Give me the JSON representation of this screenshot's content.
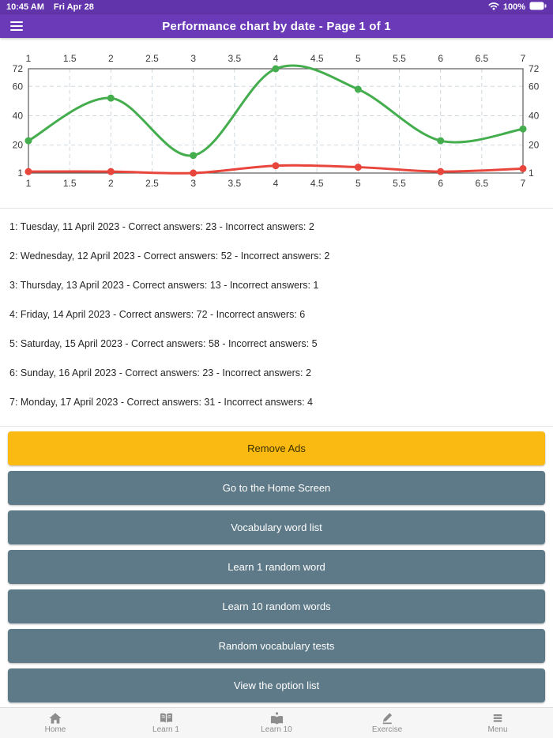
{
  "colors": {
    "status_bar_purple": "#6234ab",
    "header_purple": "#6a3ab9",
    "accent_yellow": "#fbba12",
    "button_slate": "#5e7a88",
    "line_green": "#44ad4d",
    "line_red": "#e8453c",
    "grid_gray": "#cfd9e0",
    "frame_gray": "#5a5a5a"
  },
  "status_bar": {
    "time": "10:45 AM",
    "date": "Fri Apr 28",
    "battery_percent": "100%",
    "icons": [
      "wifi-icon",
      "battery-icon"
    ]
  },
  "header": {
    "title": "Performance chart by date - Page 1 of 1",
    "icon": "hamburger-menu-icon"
  },
  "chart_data": {
    "type": "line",
    "title": "",
    "x": [
      1,
      2,
      3,
      4,
      5,
      6,
      7
    ],
    "series": [
      {
        "name": "Correct answers",
        "color": "#44ad4d",
        "values": [
          23,
          52,
          13,
          72,
          58,
          23,
          31
        ]
      },
      {
        "name": "Incorrect answers",
        "color": "#e8453c",
        "values": [
          2,
          2,
          1,
          6,
          5,
          2,
          4
        ]
      }
    ],
    "x_ticks": [
      1,
      1.5,
      2,
      2.5,
      3,
      3.5,
      4,
      4.5,
      5,
      5.5,
      6,
      6.5,
      7
    ],
    "y_ticks": [
      1,
      20,
      40,
      60,
      72
    ],
    "xlim": [
      1,
      7
    ],
    "ylim": [
      1,
      72
    ],
    "grid": "dashed",
    "smooth": true,
    "legend": "none",
    "x_labels_position": "top and bottom",
    "y_labels_position": "left and right"
  },
  "days": [
    "1: Tuesday, 11 April 2023 - Correct answers: 23 - Incorrect answers: 2",
    "2: Wednesday, 12 April 2023 - Correct answers: 52 - Incorrect answers: 2",
    "3: Thursday, 13 April 2023 - Correct answers: 13 - Incorrect answers: 1",
    "4: Friday, 14 April 2023 - Correct answers: 72 - Incorrect answers: 6",
    "5: Saturday, 15 April 2023 - Correct answers: 58 - Incorrect answers: 5",
    "6: Sunday, 16 April 2023 - Correct answers: 23 - Incorrect answers: 2",
    "7: Monday, 17 April 2023 - Correct answers: 31 - Incorrect answers: 4"
  ],
  "buttons": [
    {
      "label": "Remove Ads",
      "style": "yellow"
    },
    {
      "label": "Go to the Home Screen",
      "style": "slate"
    },
    {
      "label": "Vocabulary word list",
      "style": "slate"
    },
    {
      "label": "Learn 1 random word",
      "style": "slate"
    },
    {
      "label": "Learn 10 random words",
      "style": "slate"
    },
    {
      "label": "Random vocabulary tests",
      "style": "slate"
    },
    {
      "label": "View the option list",
      "style": "slate"
    }
  ],
  "tab_bar": [
    {
      "label": "Home",
      "icon": "home-icon"
    },
    {
      "label": "Learn 1",
      "icon": "open-book-icon"
    },
    {
      "label": "Learn 10",
      "icon": "book-dot-icon"
    },
    {
      "label": "Exercise",
      "icon": "pencil-icon"
    },
    {
      "label": "Menu",
      "icon": "menu-icon"
    }
  ]
}
